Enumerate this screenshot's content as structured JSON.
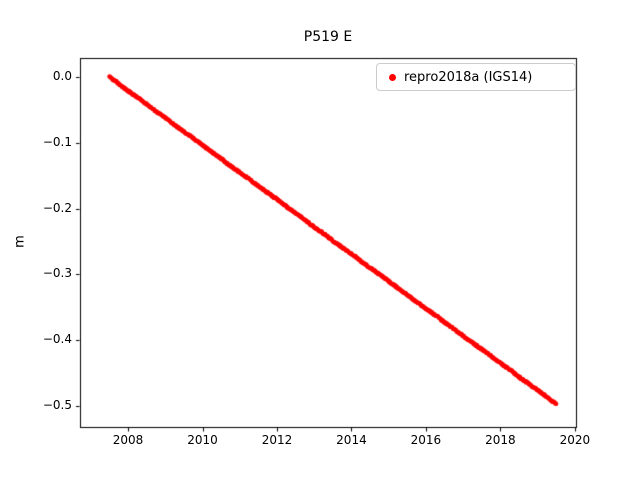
{
  "chart_data": {
    "type": "scatter",
    "title": "P519 E",
    "xlabel": "",
    "ylabel": "m",
    "xlim": [
      2006.71,
      2020.03
    ],
    "ylim": [
      -0.532,
      0.029
    ],
    "x_ticks": [
      2008,
      2010,
      2012,
      2014,
      2016,
      2018,
      2020
    ],
    "x_tick_labels": [
      "2008",
      "2010",
      "2012",
      "2014",
      "2016",
      "2018",
      "2020"
    ],
    "y_ticks": [
      0.0,
      -0.1,
      -0.2,
      -0.3,
      -0.4,
      -0.5
    ],
    "y_tick_labels": [
      "0.0",
      "−0.1",
      "−0.2",
      "−0.3",
      "−0.4",
      "−0.5"
    ],
    "grid": false,
    "legend": {
      "position": "upper right",
      "entries": [
        {
          "label": "repro2018a (IGS14)",
          "marker": "dot",
          "color": "#ff0000"
        }
      ]
    },
    "series": [
      {
        "name": "repro2018a (IGS14)",
        "color": "#ff0000",
        "marker_size": 2,
        "x": [
          2007.5,
          2007.7,
          2007.9,
          2008.1,
          2008.3,
          2008.5,
          2008.7,
          2008.9,
          2009.1,
          2009.3,
          2009.5,
          2009.7,
          2009.9,
          2010.1,
          2010.3,
          2010.5,
          2010.7,
          2010.9,
          2011.1,
          2011.3,
          2011.5,
          2011.7,
          2011.9,
          2012.1,
          2012.3,
          2012.5,
          2012.7,
          2012.9,
          2013.1,
          2013.3,
          2013.5,
          2013.7,
          2013.9,
          2014.1,
          2014.3,
          2014.5,
          2014.7,
          2014.9,
          2015.1,
          2015.3,
          2015.5,
          2015.7,
          2015.9,
          2016.1,
          2016.3,
          2016.5,
          2016.7,
          2016.9,
          2017.1,
          2017.3,
          2017.5,
          2017.7,
          2017.9,
          2018.1,
          2018.3,
          2018.5,
          2018.7,
          2018.9,
          2019.1,
          2019.3,
          2019.5
        ],
        "y": [
          0.0,
          -0.008,
          -0.017,
          -0.025,
          -0.033,
          -0.041,
          -0.05,
          -0.058,
          -0.066,
          -0.075,
          -0.083,
          -0.091,
          -0.099,
          -0.108,
          -0.116,
          -0.124,
          -0.133,
          -0.141,
          -0.149,
          -0.157,
          -0.166,
          -0.174,
          -0.182,
          -0.19,
          -0.199,
          -0.207,
          -0.215,
          -0.224,
          -0.232,
          -0.24,
          -0.249,
          -0.257,
          -0.265,
          -0.273,
          -0.282,
          -0.29,
          -0.298,
          -0.306,
          -0.315,
          -0.323,
          -0.331,
          -0.34,
          -0.348,
          -0.356,
          -0.364,
          -0.373,
          -0.381,
          -0.389,
          -0.398,
          -0.406,
          -0.414,
          -0.422,
          -0.431,
          -0.439,
          -0.447,
          -0.456,
          -0.464,
          -0.472,
          -0.48,
          -0.489,
          -0.497
        ]
      }
    ]
  }
}
